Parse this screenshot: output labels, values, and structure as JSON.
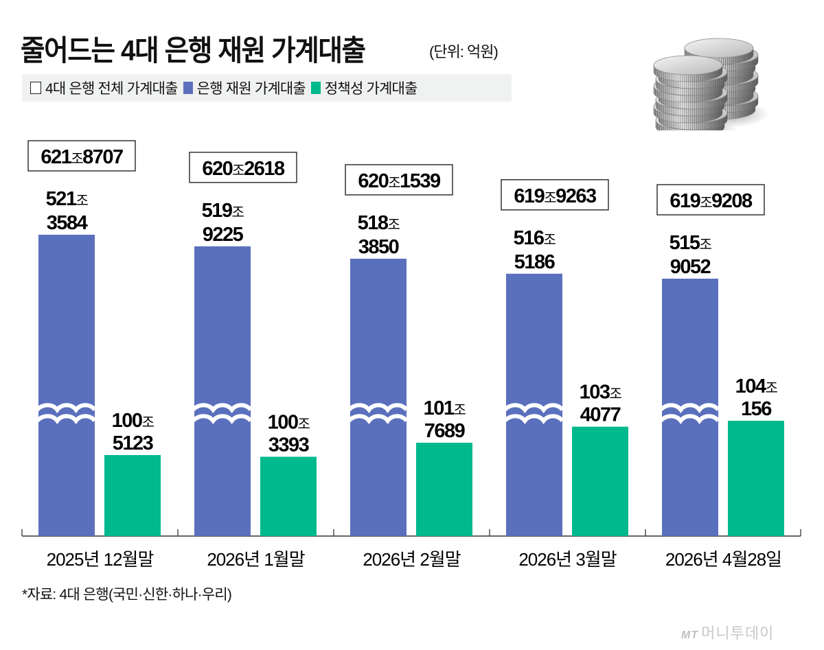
{
  "header": {
    "title": "줄어드는 4대 은행 재원 가계대출",
    "unit": "(단위: 억원)"
  },
  "legend": [
    {
      "label": "4대 은행 전체 가계대출",
      "style": "outline",
      "color": "#ffffff"
    },
    {
      "label": "은행 재원 가계대출",
      "style": "fill",
      "color": "#5b70bd"
    },
    {
      "label": "정책성 가계대출",
      "style": "fill",
      "color": "#00b98c"
    }
  ],
  "illustration": {
    "icon": "coin-stacks-icon"
  },
  "chart_data": {
    "type": "bar",
    "title": "줄어드는 4대 은행 재원 가계대출",
    "subtitle": "(단위: 억원)",
    "xlabel": "",
    "ylabel": "",
    "axis_break": true,
    "grid": false,
    "legend_position": "top-left",
    "categories": [
      "2025년 12월말",
      "2026년 1월말",
      "2026년 2월말",
      "2026년 3월말",
      "2026년 4월28일"
    ],
    "totals": {
      "name": "4대 은행 전체 가계대출",
      "values": [
        6218707,
        6202618,
        6201539,
        6199263,
        6199208
      ],
      "labels": [
        "621조8707",
        "620조2618",
        "620조1539",
        "619조9263",
        "619조9208"
      ]
    },
    "series": [
      {
        "name": "은행 재원 가계대출",
        "color": "#5b70bd",
        "values": [
          5213584,
          5199225,
          5183850,
          5165186,
          5159052
        ],
        "labels_top": [
          "521조",
          "519조",
          "518조",
          "516조",
          "515조"
        ],
        "labels_bottom": [
          "3584",
          "9225",
          "3850",
          "5186",
          "9052"
        ]
      },
      {
        "name": "정책성 가계대출",
        "color": "#00b98c",
        "values": [
          1005123,
          1003393,
          1017689,
          1034077,
          1040156
        ],
        "labels_top": [
          "100조",
          "100조",
          "101조",
          "103조",
          "104조"
        ],
        "labels_bottom": [
          "5123",
          "3393",
          "7689",
          "4077",
          "156"
        ]
      }
    ]
  },
  "footer": {
    "source": "*자료: 4대 은행(국민·신한·하나·우리)",
    "logo_mark": "MT",
    "logo_text": "머니투데이"
  }
}
